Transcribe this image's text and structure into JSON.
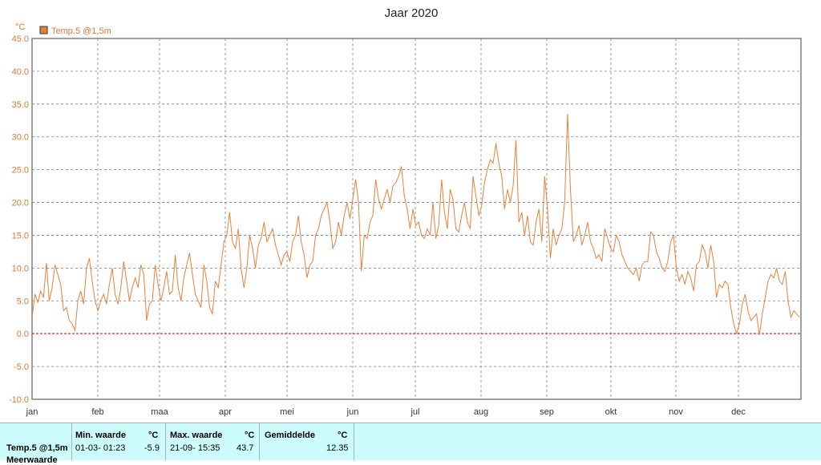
{
  "chart_data": {
    "type": "line",
    "title": "Jaar 2020",
    "unit": "°C",
    "legend": "Temp.5 @1,5m",
    "legend_placement": "top-left",
    "grid": true,
    "colors": {
      "series": "#e8803c",
      "zero_line": "#cc0000",
      "axis_text": "#e0783a",
      "grid": "#808080"
    },
    "ylim": [
      -10,
      45
    ],
    "y_ticks": [
      "-10.0",
      "-5.0",
      "0.0",
      "5.0",
      "10.0",
      "15.0",
      "20.0",
      "25.0",
      "30.0",
      "35.0",
      "40.0",
      "45.0"
    ],
    "x_ticks": [
      "jan",
      "feb",
      "maa",
      "apr",
      "mei",
      "jun",
      "jul",
      "aug",
      "sep",
      "okt",
      "nov",
      "dec"
    ],
    "series": [
      {
        "name": "Temp.5 @1,5m",
        "x_unit": "day of year",
        "points": [
          [
            0,
            2.5
          ],
          [
            2,
            6
          ],
          [
            4,
            4.8
          ],
          [
            6,
            6.5
          ],
          [
            8,
            5.5
          ],
          [
            10,
            10.8
          ],
          [
            12,
            5
          ],
          [
            14,
            7
          ],
          [
            16,
            10.5
          ],
          [
            18,
            9
          ],
          [
            20,
            7.5
          ],
          [
            22,
            3.5
          ],
          [
            24,
            4
          ],
          [
            26,
            2
          ],
          [
            28,
            1.5
          ],
          [
            30,
            0.5
          ],
          [
            32,
            5
          ],
          [
            34,
            6.5
          ],
          [
            36,
            4.5
          ],
          [
            38,
            10
          ],
          [
            40,
            11.5
          ],
          [
            42,
            8
          ],
          [
            44,
            5
          ],
          [
            46,
            3.5
          ],
          [
            48,
            5
          ],
          [
            50,
            6
          ],
          [
            52,
            4.5
          ],
          [
            54,
            7.5
          ],
          [
            56,
            10
          ],
          [
            58,
            6
          ],
          [
            60,
            4.5
          ],
          [
            62,
            7
          ],
          [
            64,
            11
          ],
          [
            66,
            8
          ],
          [
            68,
            5
          ],
          [
            70,
            7
          ],
          [
            72,
            8.5
          ],
          [
            74,
            7
          ],
          [
            76,
            10.5
          ],
          [
            78,
            9
          ],
          [
            80,
            2
          ],
          [
            82,
            4.5
          ],
          [
            84,
            5
          ],
          [
            86,
            10.5
          ],
          [
            88,
            7.5
          ],
          [
            90,
            5
          ],
          [
            92,
            7
          ],
          [
            94,
            9.5
          ],
          [
            96,
            6
          ],
          [
            98,
            6.5
          ],
          [
            100,
            12
          ],
          [
            102,
            7
          ],
          [
            104,
            5
          ],
          [
            106,
            8.5
          ],
          [
            108,
            10.5
          ],
          [
            110,
            12.3
          ],
          [
            112,
            9
          ],
          [
            114,
            6
          ],
          [
            116,
            5
          ],
          [
            118,
            4
          ],
          [
            120,
            10.5
          ],
          [
            122,
            8
          ],
          [
            124,
            4
          ],
          [
            126,
            3
          ],
          [
            128,
            8
          ],
          [
            130,
            7
          ],
          [
            132,
            10.5
          ],
          [
            134,
            14
          ],
          [
            136,
            15
          ],
          [
            138,
            18.5
          ],
          [
            140,
            14
          ],
          [
            142,
            13
          ],
          [
            144,
            16
          ],
          [
            146,
            10
          ],
          [
            148,
            7
          ],
          [
            150,
            10
          ],
          [
            152,
            15
          ],
          [
            154,
            13
          ],
          [
            156,
            10
          ],
          [
            158,
            13.5
          ],
          [
            160,
            14.5
          ],
          [
            162,
            17
          ],
          [
            164,
            14
          ],
          [
            166,
            15
          ],
          [
            168,
            16
          ],
          [
            170,
            13.5
          ],
          [
            172,
            12
          ],
          [
            174,
            10.5
          ],
          [
            176,
            12
          ],
          [
            178,
            12.5
          ],
          [
            180,
            11
          ],
          [
            182,
            14
          ],
          [
            184,
            15
          ],
          [
            186,
            18
          ],
          [
            188,
            14
          ],
          [
            190,
            12
          ],
          [
            192,
            8.5
          ],
          [
            194,
            10.5
          ],
          [
            196,
            11
          ],
          [
            198,
            15
          ],
          [
            200,
            16
          ],
          [
            202,
            18
          ],
          [
            204,
            19
          ],
          [
            206,
            20
          ],
          [
            208,
            17
          ],
          [
            210,
            13
          ],
          [
            212,
            14
          ],
          [
            214,
            17
          ],
          [
            216,
            15
          ],
          [
            218,
            18
          ],
          [
            220,
            20
          ],
          [
            222,
            17.5
          ],
          [
            224,
            20.5
          ],
          [
            226,
            23.5
          ],
          [
            228,
            20
          ],
          [
            230,
            9.5
          ],
          [
            232,
            15
          ],
          [
            234,
            14.5
          ],
          [
            236,
            17
          ],
          [
            238,
            18
          ],
          [
            240,
            23.5
          ],
          [
            242,
            20.5
          ],
          [
            244,
            19
          ],
          [
            246,
            20.5
          ],
          [
            248,
            22
          ],
          [
            250,
            20
          ],
          [
            252,
            22.5
          ],
          [
            254,
            23
          ],
          [
            256,
            24
          ],
          [
            258,
            25.5
          ],
          [
            260,
            21
          ],
          [
            262,
            19
          ],
          [
            264,
            16
          ],
          [
            266,
            19
          ],
          [
            268,
            16.5
          ],
          [
            270,
            17
          ],
          [
            272,
            15
          ],
          [
            274,
            14.5
          ],
          [
            276,
            16
          ],
          [
            278,
            15
          ],
          [
            280,
            20
          ],
          [
            282,
            14.5
          ],
          [
            284,
            16.5
          ],
          [
            286,
            23.5
          ],
          [
            288,
            18.5
          ],
          [
            290,
            16
          ],
          [
            292,
            22
          ],
          [
            294,
            20.5
          ],
          [
            296,
            16
          ],
          [
            298,
            15.5
          ],
          [
            300,
            18
          ],
          [
            302,
            20
          ],
          [
            304,
            17
          ],
          [
            306,
            16
          ],
          [
            308,
            24
          ],
          [
            310,
            21
          ],
          [
            312,
            18
          ],
          [
            314,
            19.5
          ],
          [
            316,
            23
          ],
          [
            318,
            25
          ],
          [
            320,
            26.5
          ],
          [
            322,
            26
          ],
          [
            324,
            29
          ],
          [
            326,
            26
          ],
          [
            328,
            24
          ],
          [
            330,
            19
          ],
          [
            332,
            22
          ],
          [
            334,
            20
          ],
          [
            336,
            22.5
          ],
          [
            338,
            29.5
          ],
          [
            340,
            17
          ],
          [
            342,
            18.5
          ],
          [
            344,
            15
          ],
          [
            346,
            18
          ],
          [
            348,
            14
          ],
          [
            350,
            13.5
          ],
          [
            352,
            17
          ],
          [
            354,
            19
          ],
          [
            356,
            14
          ],
          [
            358,
            24
          ],
          [
            360,
            19
          ],
          [
            362,
            11.5
          ],
          [
            364,
            16
          ],
          [
            366,
            13.5
          ],
          [
            368,
            15
          ],
          [
            370,
            16
          ],
          [
            372,
            20
          ],
          [
            374,
            33.5
          ],
          [
            376,
            22
          ],
          [
            378,
            14
          ],
          [
            380,
            15
          ],
          [
            382,
            16.5
          ],
          [
            384,
            13.5
          ],
          [
            386,
            15
          ],
          [
            388,
            17
          ],
          [
            390,
            14
          ],
          [
            392,
            13
          ],
          [
            394,
            11.5
          ],
          [
            396,
            12
          ],
          [
            398,
            11
          ],
          [
            400,
            16
          ],
          [
            402,
            14.5
          ],
          [
            404,
            13
          ],
          [
            406,
            12.5
          ],
          [
            408,
            15
          ],
          [
            410,
            14
          ],
          [
            412,
            12
          ],
          [
            414,
            11
          ],
          [
            416,
            10
          ],
          [
            418,
            9.5
          ],
          [
            420,
            9
          ],
          [
            422,
            10
          ],
          [
            424,
            8
          ],
          [
            426,
            10.5
          ],
          [
            428,
            11
          ],
          [
            430,
            11
          ],
          [
            432,
            15.5
          ],
          [
            434,
            15
          ],
          [
            436,
            12.5
          ],
          [
            438,
            11.5
          ],
          [
            440,
            10
          ],
          [
            442,
            9.5
          ],
          [
            444,
            11
          ],
          [
            446,
            14
          ],
          [
            448,
            15
          ],
          [
            450,
            10
          ],
          [
            452,
            8
          ],
          [
            454,
            9
          ],
          [
            456,
            7.5
          ],
          [
            458,
            9.5
          ],
          [
            460,
            8.5
          ],
          [
            462,
            6.5
          ],
          [
            464,
            10.5
          ],
          [
            466,
            11
          ],
          [
            468,
            13.5
          ],
          [
            470,
            12.5
          ],
          [
            472,
            10
          ],
          [
            474,
            13.5
          ],
          [
            476,
            11
          ],
          [
            478,
            5.5
          ],
          [
            480,
            7.5
          ],
          [
            482,
            7
          ],
          [
            484,
            8
          ],
          [
            486,
            7.5
          ],
          [
            488,
            4
          ],
          [
            490,
            1.5
          ],
          [
            492,
            0
          ],
          [
            494,
            1.5
          ],
          [
            496,
            4.5
          ],
          [
            498,
            6
          ],
          [
            500,
            3.5
          ],
          [
            502,
            2
          ],
          [
            504,
            2.5
          ],
          [
            506,
            3
          ],
          [
            508,
            -0.2
          ],
          [
            510,
            3
          ],
          [
            512,
            5.5
          ],
          [
            514,
            8
          ],
          [
            516,
            9
          ],
          [
            518,
            8.5
          ],
          [
            520,
            10
          ],
          [
            522,
            8
          ],
          [
            524,
            7.5
          ],
          [
            526,
            9.5
          ],
          [
            528,
            5
          ],
          [
            530,
            2.5
          ],
          [
            532,
            3.5
          ],
          [
            534,
            3
          ],
          [
            536,
            2.5
          ]
        ]
      }
    ]
  },
  "stats": {
    "series_label": "Temp.5 @1,5m",
    "row2_label": "Meerwaarde",
    "min_header": "Min. waarde",
    "min_unit": "°C",
    "min_time": "01-03-  01:23",
    "min_value": "-5.9",
    "max_header": "Max. waarde",
    "max_unit": "°C",
    "max_time": "21-09-  15:35",
    "max_value": "43.7",
    "avg_header": "Gemiddelde",
    "avg_unit": "°C",
    "avg_value": "12.35"
  }
}
